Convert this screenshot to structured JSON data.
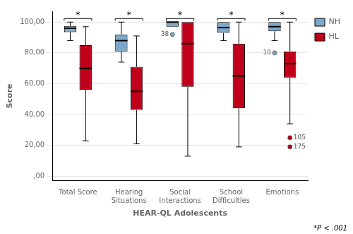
{
  "chart_data": {
    "type": "boxplot",
    "categories": [
      "Total Score",
      "Hearing\nSituations",
      "Social\nInteractions",
      "School\nDifficulties",
      "Emotions"
    ],
    "xlabel": "HEAR-QL Adolescents",
    "ylabel": "Score",
    "ylim": [
      -3,
      107
    ],
    "yticks": [
      {
        "value": 0,
        "label": ",00"
      },
      {
        "value": 20,
        "label": "20,00"
      },
      {
        "value": 40,
        "label": "40,00"
      },
      {
        "value": 60,
        "label": "60,00"
      },
      {
        "value": 80,
        "label": "80,00"
      },
      {
        "value": 100,
        "label": "100,00"
      }
    ],
    "grid": true,
    "legend": "upper right",
    "series": [
      {
        "name": "NH",
        "color": "#7BA7C9",
        "values": [
          {
            "q1": 93.5,
            "median": 96.0,
            "q3": 97.5,
            "whislo": 88.0,
            "whishi": 100.0,
            "fliers": []
          },
          {
            "q1": 81.0,
            "median": 88.0,
            "q3": 92.0,
            "whislo": 74.0,
            "whishi": 100.0,
            "fliers": []
          },
          {
            "q1": 97.0,
            "median": 100.0,
            "q3": 100.0,
            "whislo": 100.0,
            "whishi": 100.0,
            "fliers": [
              92.0
            ]
          },
          {
            "q1": 93.0,
            "median": 96.5,
            "q3": 100.0,
            "whislo": 88.0,
            "whishi": 100.0,
            "fliers": []
          },
          {
            "q1": 94.0,
            "median": 97.0,
            "q3": 100.0,
            "whislo": 88.0,
            "whishi": 100.0,
            "fliers": [
              80.0
            ]
          }
        ]
      },
      {
        "name": "HL",
        "color": "#C0001A",
        "values": [
          {
            "q1": 56.0,
            "median": 70.0,
            "q3": 85.0,
            "whislo": 23.0,
            "whishi": 97.0,
            "fliers": []
          },
          {
            "q1": 43.0,
            "median": 55.0,
            "q3": 71.0,
            "whislo": 21.0,
            "whishi": 91.0,
            "fliers": []
          },
          {
            "q1": 58.0,
            "median": 86.0,
            "q3": 100.0,
            "whislo": 13.0,
            "whishi": 100.0,
            "fliers": []
          },
          {
            "q1": 44.0,
            "median": 65.0,
            "q3": 86.0,
            "whislo": 19.0,
            "whishi": 100.0,
            "fliers": []
          },
          {
            "q1": 64.0,
            "median": 73.0,
            "q3": 81.0,
            "whislo": 34.0,
            "whishi": 100.0,
            "fliers": [
              25.0,
              19.0
            ]
          }
        ]
      }
    ],
    "annotations": [
      {
        "text": "38",
        "series": "NH",
        "category": "Social\nInteractions",
        "value": 92.0
      },
      {
        "text": "10",
        "series": "NH",
        "category": "Emotions",
        "value": 80.0
      },
      {
        "text": "105",
        "series": "HL",
        "category": "Emotions",
        "value": 25.0
      },
      {
        "text": "175",
        "series": "HL",
        "category": "Emotions",
        "value": 19.0
      },
      {
        "text": "*",
        "category": "Total Score"
      },
      {
        "text": "*",
        "category": "Hearing\nSituations"
      },
      {
        "text": "*",
        "category": "Social\nInteractions"
      },
      {
        "text": "*",
        "category": "School\nDifficulties"
      },
      {
        "text": "*",
        "category": "Emotions"
      }
    ],
    "footnote": "*P < .001"
  }
}
